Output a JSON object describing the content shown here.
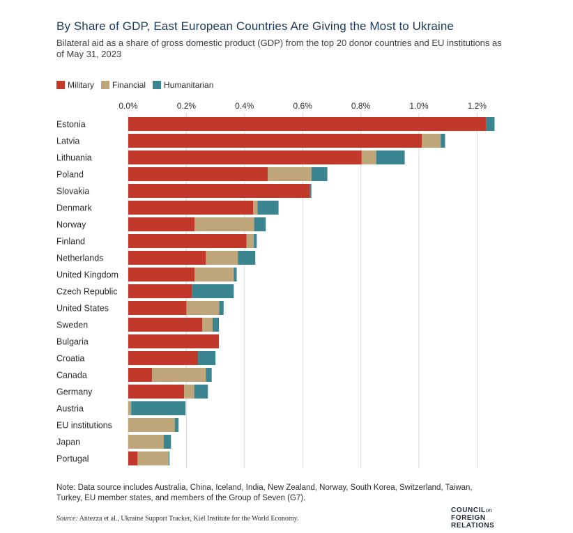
{
  "title": "By Share of GDP, East European Countries Are Giving the Most to Ukraine",
  "subtitle": "Bilateral aid as a share of gross domestic product (GDP) from the top 20 donor countries and EU institutions as of May 31, 2023",
  "note": "Note: Data source includes Australia, China, Iceland, India, New Zealand, Norway, South Korea, Switzerland, Taiwan, Turkey, EU member states, and members of the Group of Seven (G7).",
  "source_label": "Source:",
  "source_text": "Antezza et al., Ukraine Support Tracker, Kiel Institute for the World Economy.",
  "logo": {
    "line1": "COUNCIL",
    "line1_suffix": "on",
    "line2": "FOREIGN",
    "line3": "RELATIONS"
  },
  "colors": {
    "Military": "#c0392b",
    "Financial": "#bfa57a",
    "Humanitarian": "#3b8590"
  },
  "chart_data": {
    "type": "bar",
    "orientation": "horizontal",
    "stacked": true,
    "xlim": [
      0,
      1.26
    ],
    "x_ticks": [
      0,
      0.2,
      0.4,
      0.6,
      0.8,
      1.0,
      1.2
    ],
    "x_tick_labels": [
      "0.0%",
      "0.2%",
      "0.4%",
      "0.6%",
      "0.8%",
      "1.0%",
      "1.2%"
    ],
    "grid": true,
    "legend": "top-left",
    "categories": [
      "Estonia",
      "Latvia",
      "Lithuania",
      "Poland",
      "Slovakia",
      "Denmark",
      "Norway",
      "Finland",
      "Netherlands",
      "United Kingdom",
      "Czech Republic",
      "United States",
      "Sweden",
      "Bulgaria",
      "Croatia",
      "Canada",
      "Germany",
      "Austria",
      "EU institutions",
      "Japan",
      "Portugal"
    ],
    "series": [
      {
        "name": "Military",
        "values": [
          1.232,
          1.01,
          0.803,
          0.48,
          0.625,
          0.43,
          0.228,
          0.407,
          0.267,
          0.228,
          0.22,
          0.2,
          0.255,
          0.312,
          0.24,
          0.082,
          0.192,
          0.0,
          0.0,
          0.0,
          0.032
        ]
      },
      {
        "name": "Financial",
        "values": [
          0.0,
          0.065,
          0.05,
          0.15,
          0.0,
          0.015,
          0.205,
          0.025,
          0.11,
          0.135,
          0.0,
          0.113,
          0.035,
          0.0,
          0.0,
          0.185,
          0.035,
          0.01,
          0.16,
          0.122,
          0.107
        ]
      },
      {
        "name": "Humanitarian",
        "values": [
          0.028,
          0.015,
          0.098,
          0.055,
          0.005,
          0.072,
          0.04,
          0.01,
          0.06,
          0.01,
          0.143,
          0.015,
          0.022,
          0.0,
          0.06,
          0.02,
          0.047,
          0.187,
          0.013,
          0.025,
          0.003
        ]
      }
    ]
  }
}
